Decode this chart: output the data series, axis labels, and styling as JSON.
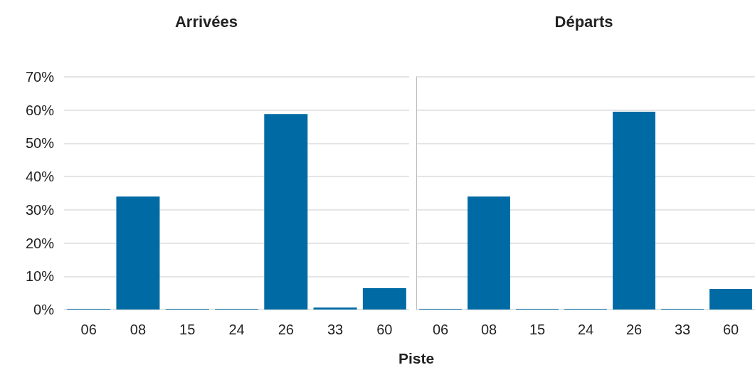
{
  "chart_data": [
    {
      "type": "bar",
      "title": "Arrivées",
      "xlabel": "Piste",
      "categories": [
        "06",
        "08",
        "15",
        "24",
        "26",
        "33",
        "60"
      ],
      "values": [
        0.2,
        34,
        0.2,
        0.2,
        58.8,
        0.6,
        6.4
      ],
      "color": "#006aa4",
      "ylim": [
        0,
        70
      ],
      "yticks": [
        {
          "value": 0,
          "label": "0%"
        },
        {
          "value": 10,
          "label": "10%"
        },
        {
          "value": 20,
          "label": "20%"
        },
        {
          "value": 30,
          "label": "30%"
        },
        {
          "value": 40,
          "label": "40%"
        },
        {
          "value": 50,
          "label": "50%"
        },
        {
          "value": 60,
          "label": "60%"
        },
        {
          "value": 70,
          "label": "70%"
        }
      ],
      "grid": "y"
    },
    {
      "type": "bar",
      "title": "Départs",
      "categories": [
        "06",
        "08",
        "15",
        "24",
        "26",
        "33",
        "60"
      ],
      "values": [
        0.2,
        34,
        0.2,
        0.2,
        59.5,
        0.2,
        6.2
      ],
      "color": "#006aa4",
      "ylim": [
        0,
        70
      ],
      "yticks": [
        {
          "value": 0,
          "label": null
        },
        {
          "value": 10,
          "label": null
        },
        {
          "value": 20,
          "label": null
        },
        {
          "value": 30,
          "label": null
        },
        {
          "value": 40,
          "label": null
        },
        {
          "value": 50,
          "label": null
        },
        {
          "value": 60,
          "label": null
        },
        {
          "value": 70,
          "label": null
        }
      ],
      "grid": "y",
      "tick_labels": "x"
    }
  ]
}
